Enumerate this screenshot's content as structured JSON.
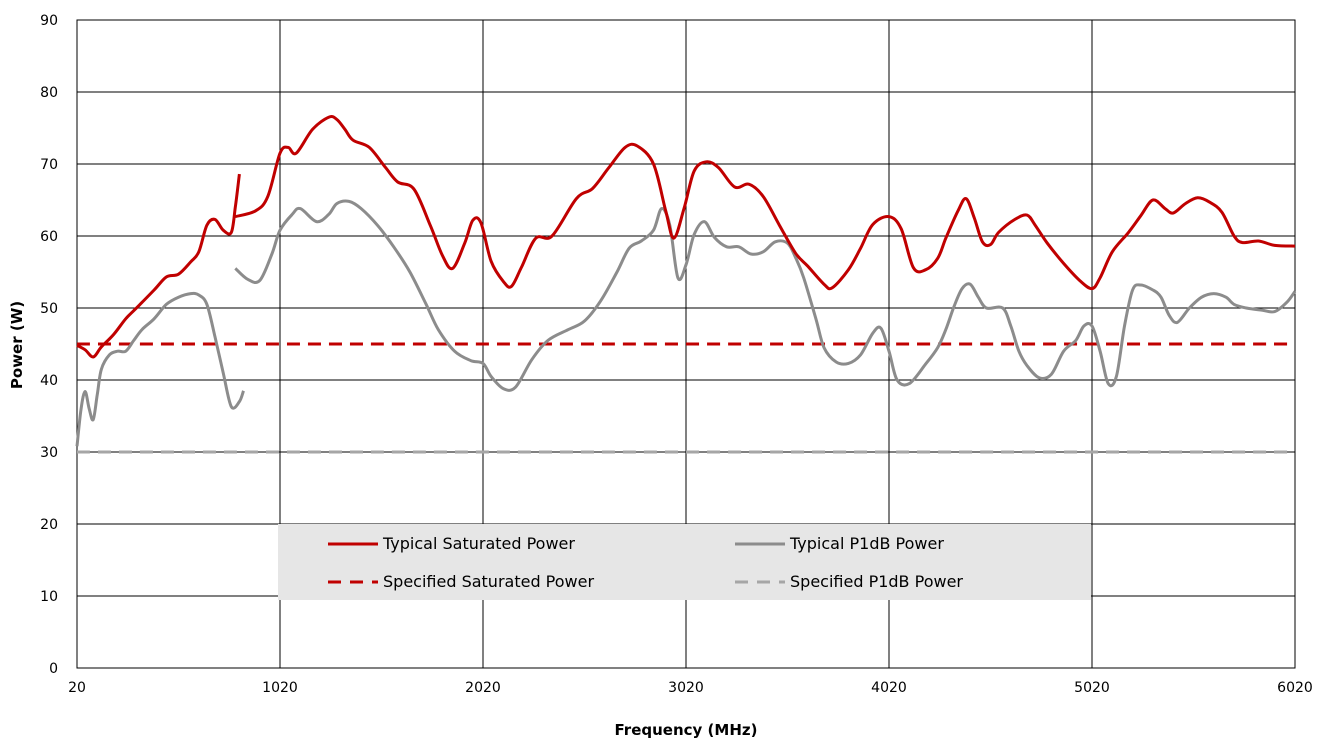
{
  "chart_data": {
    "type": "line",
    "title": "",
    "xlabel": "Frequency (MHz)",
    "ylabel": "Power (W)",
    "xlim": [
      20,
      6020
    ],
    "ylim": [
      0,
      90
    ],
    "x_ticks": [
      "20",
      "1020",
      "2020",
      "3020",
      "4020",
      "5020",
      "6020"
    ],
    "y_ticks": [
      "0",
      "10",
      "20",
      "30",
      "40",
      "50",
      "60",
      "70",
      "80",
      "90"
    ],
    "grid": true,
    "legend_position": "lower-center",
    "series": [
      {
        "name": "Typical Saturated Power",
        "color": "#c00000",
        "dash": "solid",
        "segments": [
          [
            [
              20,
              44.8
            ],
            [
              60,
              44.2
            ],
            [
              100,
              43.2
            ],
            [
              140,
              44.6
            ],
            [
              200,
              46.3
            ],
            [
              260,
              48.5
            ],
            [
              320,
              50.2
            ],
            [
              400,
              52.5
            ],
            [
              460,
              54.3
            ],
            [
              520,
              54.7
            ],
            [
              580,
              56.4
            ],
            [
              620,
              57.8
            ],
            [
              660,
              61.5
            ],
            [
              700,
              62.3
            ],
            [
              740,
              60.8
            ],
            [
              780,
              60.5
            ],
            [
              800,
              64.0
            ],
            [
              820,
              68.6
            ]
          ],
          [
            [
              800,
              62.7
            ],
            [
              900,
              63.5
            ],
            [
              960,
              65.5
            ],
            [
              1020,
              71.5
            ],
            [
              1060,
              72.3
            ],
            [
              1100,
              71.5
            ],
            [
              1180,
              74.8
            ],
            [
              1260,
              76.5
            ],
            [
              1300,
              76.2
            ],
            [
              1340,
              74.8
            ],
            [
              1380,
              73.3
            ],
            [
              1460,
              72.3
            ],
            [
              1540,
              69.5
            ],
            [
              1600,
              67.5
            ],
            [
              1680,
              66.5
            ],
            [
              1760,
              61.5
            ],
            [
              1820,
              57.3
            ],
            [
              1870,
              55.5
            ],
            [
              1930,
              59.0
            ],
            [
              1970,
              62.2
            ],
            [
              2010,
              61.8
            ],
            [
              2060,
              56.5
            ],
            [
              2120,
              53.7
            ],
            [
              2160,
              53.0
            ],
            [
              2210,
              55.7
            ],
            [
              2280,
              59.7
            ],
            [
              2360,
              60.0
            ],
            [
              2480,
              65.2
            ],
            [
              2560,
              66.6
            ],
            [
              2640,
              69.5
            ],
            [
              2720,
              72.3
            ],
            [
              2780,
              72.5
            ],
            [
              2860,
              70.0
            ],
            [
              2920,
              63.5
            ],
            [
              2960,
              59.7
            ],
            [
              3010,
              63.8
            ],
            [
              3060,
              69.0
            ],
            [
              3120,
              70.3
            ],
            [
              3180,
              69.5
            ],
            [
              3260,
              66.8
            ],
            [
              3330,
              67.2
            ],
            [
              3400,
              65.5
            ],
            [
              3480,
              61.5
            ],
            [
              3560,
              57.6
            ],
            [
              3620,
              55.8
            ],
            [
              3700,
              53.3
            ],
            [
              3740,
              52.8
            ],
            [
              3820,
              55.3
            ],
            [
              3880,
              58.3
            ],
            [
              3940,
              61.6
            ],
            [
              4020,
              62.7
            ],
            [
              4080,
              61.0
            ],
            [
              4140,
              55.6
            ],
            [
              4200,
              55.3
            ],
            [
              4260,
              56.9
            ],
            [
              4300,
              59.7
            ],
            [
              4360,
              63.5
            ],
            [
              4400,
              65.2
            ],
            [
              4440,
              62.5
            ],
            [
              4480,
              59.2
            ],
            [
              4520,
              58.8
            ],
            [
              4560,
              60.5
            ],
            [
              4640,
              62.3
            ],
            [
              4700,
              62.9
            ],
            [
              4740,
              61.5
            ],
            [
              4800,
              59.0
            ],
            [
              4880,
              56.2
            ],
            [
              4960,
              53.8
            ],
            [
              5020,
              52.7
            ],
            [
              5060,
              54.2
            ],
            [
              5120,
              57.8
            ],
            [
              5200,
              60.5
            ],
            [
              5260,
              62.8
            ],
            [
              5320,
              65.0
            ],
            [
              5380,
              63.8
            ],
            [
              5420,
              63.2
            ],
            [
              5480,
              64.5
            ],
            [
              5540,
              65.3
            ],
            [
              5600,
              64.7
            ],
            [
              5660,
              63.3
            ],
            [
              5720,
              60.0
            ],
            [
              5760,
              59.1
            ],
            [
              5840,
              59.3
            ],
            [
              5920,
              58.7
            ],
            [
              6020,
              58.6
            ]
          ]
        ]
      },
      {
        "name": "Typical P1dB Power",
        "color": "#8c8c8c",
        "dash": "solid",
        "segments": [
          [
            [
              20,
              30.8
            ],
            [
              40,
              36.0
            ],
            [
              60,
              38.4
            ],
            [
              80,
              36.0
            ],
            [
              100,
              34.5
            ],
            [
              120,
              38.0
            ],
            [
              140,
              41.5
            ],
            [
              180,
              43.5
            ],
            [
              220,
              44.0
            ],
            [
              260,
              44.0
            ],
            [
              300,
              45.5
            ],
            [
              340,
              47.0
            ],
            [
              400,
              48.5
            ],
            [
              460,
              50.5
            ],
            [
              520,
              51.5
            ],
            [
              580,
              52.0
            ],
            [
              620,
              51.8
            ],
            [
              660,
              50.5
            ],
            [
              700,
              46.0
            ],
            [
              740,
              41.0
            ],
            [
              780,
              36.3
            ],
            [
              820,
              37.0
            ],
            [
              840,
              38.5
            ]
          ],
          [
            [
              800,
              55.5
            ],
            [
              860,
              54.0
            ],
            [
              920,
              53.8
            ],
            [
              980,
              57.5
            ],
            [
              1020,
              60.8
            ],
            [
              1080,
              63.0
            ],
            [
              1120,
              63.8
            ],
            [
              1200,
              62.0
            ],
            [
              1260,
              63.0
            ],
            [
              1300,
              64.5
            ],
            [
              1360,
              64.8
            ],
            [
              1420,
              63.8
            ],
            [
              1500,
              61.5
            ],
            [
              1580,
              58.5
            ],
            [
              1660,
              55.0
            ],
            [
              1740,
              50.5
            ],
            [
              1800,
              47.0
            ],
            [
              1880,
              44.0
            ],
            [
              1960,
              42.7
            ],
            [
              2020,
              42.3
            ],
            [
              2060,
              40.5
            ],
            [
              2120,
              38.8
            ],
            [
              2180,
              39.0
            ],
            [
              2260,
              42.8
            ],
            [
              2340,
              45.5
            ],
            [
              2440,
              47.0
            ],
            [
              2520,
              48.2
            ],
            [
              2600,
              51.0
            ],
            [
              2680,
              55.0
            ],
            [
              2740,
              58.3
            ],
            [
              2800,
              59.3
            ],
            [
              2860,
              60.8
            ],
            [
              2900,
              63.8
            ],
            [
              2940,
              61.5
            ],
            [
              2980,
              54.2
            ],
            [
              3020,
              56.0
            ],
            [
              3060,
              60.2
            ],
            [
              3110,
              62.0
            ],
            [
              3160,
              59.8
            ],
            [
              3220,
              58.5
            ],
            [
              3280,
              58.5
            ],
            [
              3340,
              57.5
            ],
            [
              3400,
              57.8
            ],
            [
              3460,
              59.2
            ],
            [
              3520,
              59.0
            ],
            [
              3560,
              57.0
            ],
            [
              3600,
              54.2
            ],
            [
              3660,
              48.5
            ],
            [
              3700,
              44.5
            ],
            [
              3760,
              42.5
            ],
            [
              3820,
              42.3
            ],
            [
              3880,
              43.5
            ],
            [
              3940,
              46.5
            ],
            [
              3980,
              47.2
            ],
            [
              4020,
              44.0
            ],
            [
              4060,
              40.0
            ],
            [
              4120,
              39.5
            ],
            [
              4200,
              42.2
            ],
            [
              4260,
              44.5
            ],
            [
              4300,
              47.0
            ],
            [
              4340,
              50.2
            ],
            [
              4380,
              52.7
            ],
            [
              4420,
              53.3
            ],
            [
              4460,
              51.5
            ],
            [
              4500,
              50.0
            ],
            [
              4580,
              50.0
            ],
            [
              4620,
              47.5
            ],
            [
              4660,
              44.0
            ],
            [
              4700,
              42.0
            ],
            [
              4760,
              40.3
            ],
            [
              4820,
              40.8
            ],
            [
              4880,
              44.0
            ],
            [
              4940,
              45.5
            ],
            [
              4980,
              47.5
            ],
            [
              5020,
              47.5
            ],
            [
              5060,
              44.0
            ],
            [
              5100,
              39.5
            ],
            [
              5140,
              40.5
            ],
            [
              5180,
              47.5
            ],
            [
              5220,
              52.5
            ],
            [
              5260,
              53.2
            ],
            [
              5320,
              52.5
            ],
            [
              5360,
              51.5
            ],
            [
              5400,
              49.0
            ],
            [
              5440,
              48.0
            ],
            [
              5500,
              50.0
            ],
            [
              5560,
              51.5
            ],
            [
              5620,
              52.0
            ],
            [
              5680,
              51.5
            ],
            [
              5720,
              50.5
            ],
            [
              5780,
              50.0
            ],
            [
              5860,
              49.7
            ],
            [
              5920,
              49.5
            ],
            [
              5980,
              50.8
            ],
            [
              6020,
              52.3
            ]
          ]
        ]
      },
      {
        "name": "Specified Saturated Power",
        "color": "#c00000",
        "dash": "dashed",
        "segments": [
          [
            [
              20,
              45
            ],
            [
              6020,
              45
            ]
          ]
        ]
      },
      {
        "name": "Specified P1dB Power",
        "color": "#a6a6a6",
        "dash": "dashed",
        "segments": [
          [
            [
              20,
              30
            ],
            [
              6020,
              30
            ]
          ]
        ]
      }
    ],
    "legend": [
      {
        "label": "Typical Saturated Power",
        "color": "#c00000",
        "dash": "solid"
      },
      {
        "label": "Typical P1dB Power",
        "color": "#8c8c8c",
        "dash": "solid"
      },
      {
        "label": "Specified Saturated Power",
        "color": "#c00000",
        "dash": "dashed"
      },
      {
        "label": "Specified P1dB Power",
        "color": "#a6a6a6",
        "dash": "dashed"
      }
    ]
  }
}
